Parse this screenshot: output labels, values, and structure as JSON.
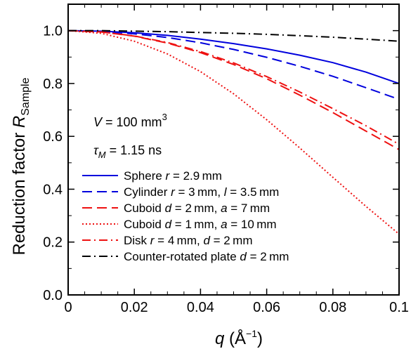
{
  "chart_data": {
    "type": "line",
    "xlabel": "q (Å^-1)",
    "ylabel": "Reduction factor R_Sample",
    "xlim": [
      0,
      0.1
    ],
    "ylim": [
      0.0,
      1.1
    ],
    "x_ticks": [
      "0",
      "0.02",
      "0.04",
      "0.06",
      "0.08",
      "0.1"
    ],
    "y_ticks": [
      "0.0",
      "0.2",
      "0.4",
      "0.6",
      "0.8",
      "1.0"
    ],
    "grid": false,
    "legend_position": "lower-left",
    "annotations": {
      "volume": {
        "var": "V",
        "text": " = 100 mm",
        "sup": "3"
      },
      "tau": {
        "var": "τ",
        "sub": "M",
        "text": " = 1.15 ns"
      }
    },
    "series": [
      {
        "name": "Sphere r = 2.9 mm",
        "color": "#0000dd",
        "dash": "solid",
        "x": [
          0,
          0.01,
          0.02,
          0.03,
          0.04,
          0.05,
          0.06,
          0.07,
          0.08,
          0.09,
          0.1
        ],
        "y": [
          1.0,
          0.998,
          0.992,
          0.982,
          0.968,
          0.951,
          0.931,
          0.907,
          0.879,
          0.843,
          0.8
        ]
      },
      {
        "name": "Cylinder r = 3 mm, l = 3.5 mm",
        "color": "#0000dd",
        "dash": "dashed",
        "x": [
          0,
          0.01,
          0.02,
          0.03,
          0.04,
          0.05,
          0.06,
          0.07,
          0.08,
          0.09,
          0.1
        ],
        "y": [
          1.0,
          0.997,
          0.988,
          0.974,
          0.954,
          0.929,
          0.899,
          0.865,
          0.827,
          0.784,
          0.74
        ]
      },
      {
        "name": "Cuboid d = 2 mm, a = 7 mm",
        "color": "#ee1111",
        "dash": "dashed",
        "x": [
          0,
          0.01,
          0.02,
          0.03,
          0.04,
          0.05,
          0.06,
          0.07,
          0.08,
          0.09,
          0.1
        ],
        "y": [
          1.0,
          0.995,
          0.979,
          0.953,
          0.917,
          0.872,
          0.818,
          0.756,
          0.69,
          0.62,
          0.55
        ]
      },
      {
        "name": "Cuboid d = 1 mm, a = 10 mm",
        "color": "#ee1111",
        "dash": "dotted",
        "x": [
          0,
          0.01,
          0.02,
          0.03,
          0.04,
          0.05,
          0.06,
          0.07,
          0.08,
          0.09,
          0.1
        ],
        "y": [
          1.0,
          0.99,
          0.96,
          0.912,
          0.845,
          0.761,
          0.663,
          0.556,
          0.445,
          0.335,
          0.23
        ]
      },
      {
        "name": "Disk r = 4 mm, d = 2 mm",
        "color": "#ee1111",
        "dash": "dashdot",
        "x": [
          0,
          0.01,
          0.02,
          0.03,
          0.04,
          0.05,
          0.06,
          0.07,
          0.08,
          0.09,
          0.1
        ],
        "y": [
          1.0,
          0.995,
          0.98,
          0.955,
          0.921,
          0.878,
          0.826,
          0.768,
          0.705,
          0.64,
          0.57
        ]
      },
      {
        "name": "Counter-rotated plate d = 2 mm",
        "color": "#000000",
        "dash": "dashdot",
        "x": [
          0,
          0.01,
          0.02,
          0.03,
          0.04,
          0.05,
          0.06,
          0.07,
          0.08,
          0.09,
          0.1
        ],
        "y": [
          1.0,
          1.0,
          0.998,
          0.996,
          0.993,
          0.99,
          0.986,
          0.981,
          0.975,
          0.968,
          0.96
        ]
      }
    ]
  }
}
